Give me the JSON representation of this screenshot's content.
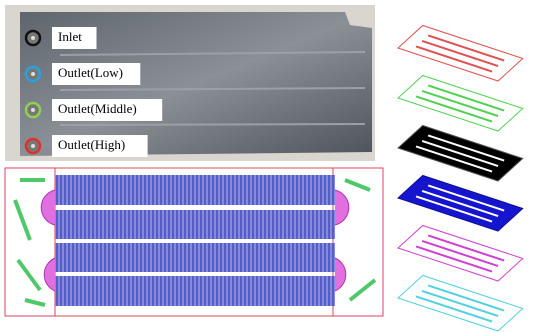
{
  "ports": [
    {
      "label": "Inlet",
      "color": "#111111"
    },
    {
      "label": "Outlet(Low)",
      "color": "#29a3e0"
    },
    {
      "label": "Outlet(Middle)",
      "color": "#8fd14f"
    },
    {
      "label": "Outlet(High)",
      "color": "#e0302a"
    }
  ]
}
